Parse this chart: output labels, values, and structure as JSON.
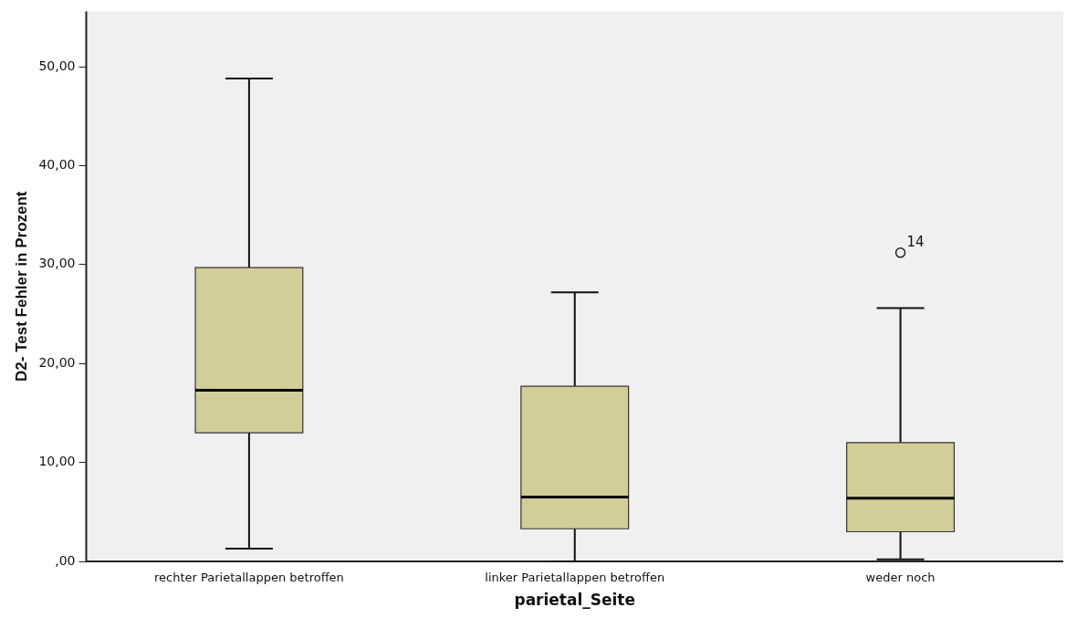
{
  "chart_data": {
    "type": "box",
    "xlabel": "parietal_Seite",
    "ylabel": "D2- Test Fehler in Prozent",
    "categories": [
      "rechter Parietallappen betroffen",
      "linker Parietallappen betroffen",
      "weder noch"
    ],
    "color": "#d3cd98",
    "boxes": [
      {
        "low": 1.3,
        "q1": 13.0,
        "median": 17.3,
        "q3": 29.7,
        "high": 48.8
      },
      {
        "low": 0,
        "q1": 3.3,
        "median": 6.5,
        "q3": 17.7,
        "high": 27.2
      },
      {
        "low": 0.2,
        "q1": 3.0,
        "median": 6.4,
        "q3": 12.0,
        "high": 25.6,
        "outliers": [
          31.2
        ]
      }
    ],
    "ylim": [
      0,
      55.6
    ],
    "yticks": [
      {
        "value": 0,
        "label": ",00"
      },
      {
        "value": 10,
        "label": "10,00"
      },
      {
        "value": 20,
        "label": "20,00"
      },
      {
        "value": 30,
        "label": "30,00"
      },
      {
        "value": 40,
        "label": "40,00"
      },
      {
        "value": 50,
        "label": "50,00"
      }
    ],
    "annotations": [
      "14"
    ],
    "grid": false,
    "legend": false,
    "marker": "circle"
  }
}
